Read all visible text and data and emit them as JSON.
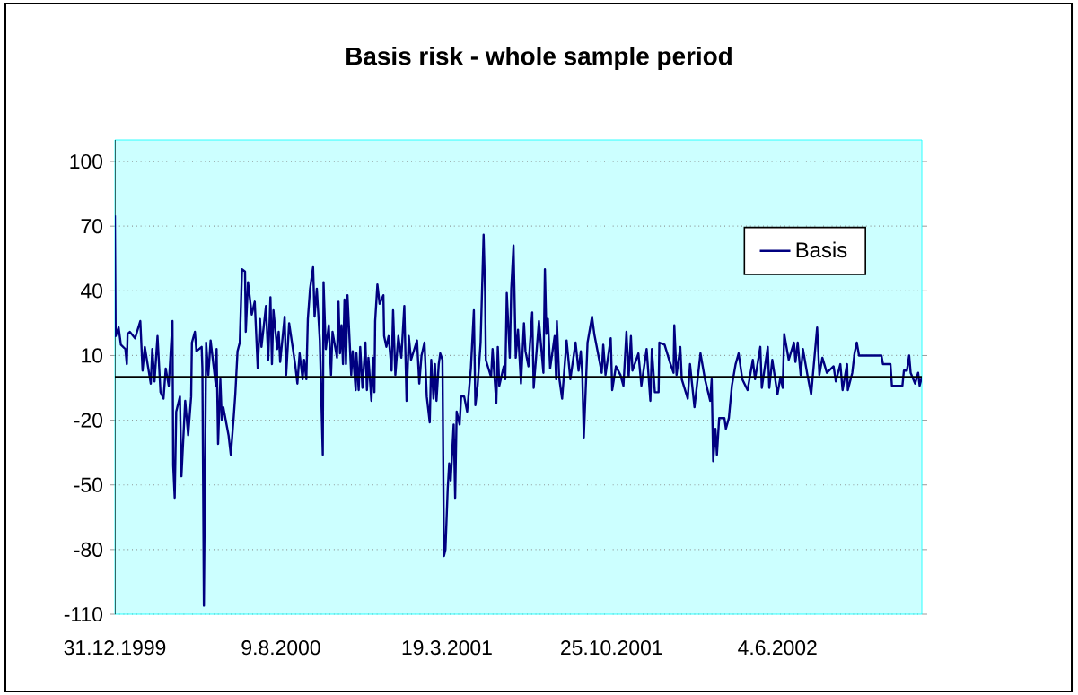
{
  "chart_data": {
    "type": "line",
    "title": "Basis risk - whole sample period",
    "x": [
      "1999-12-31",
      "2000-01-01",
      "2000-01-05",
      "2000-01-08",
      "2000-01-14",
      "2000-01-16",
      "2000-01-17",
      "2000-01-20",
      "2000-01-27",
      "2000-02-03",
      "2000-02-06",
      "2000-02-09",
      "2000-02-17",
      "2000-02-19",
      "2000-02-22",
      "2000-02-26",
      "2000-03-01",
      "2000-03-05",
      "2000-03-08",
      "2000-03-12",
      "2000-03-17",
      "2000-03-18",
      "2000-03-20",
      "2000-03-22",
      "2000-03-27",
      "2000-03-29",
      "2000-04-03",
      "2000-04-07",
      "2000-04-11",
      "2000-04-12",
      "2000-04-16",
      "2000-04-18",
      "2000-04-25",
      "2000-04-26",
      "2000-04-28",
      "2000-05-01",
      "2000-05-04",
      "2000-05-07",
      "2000-05-14",
      "2000-05-15",
      "2000-05-17",
      "2000-05-20",
      "2000-05-22",
      "2000-05-24",
      "2000-05-31",
      "2000-06-03",
      "2000-06-07",
      "2000-06-09",
      "2000-06-12",
      "2000-06-15",
      "2000-06-18",
      "2000-06-22",
      "2000-06-23",
      "2000-06-26",
      "2000-07-01",
      "2000-07-05",
      "2000-07-09",
      "2000-07-12",
      "2000-07-14",
      "2000-07-20",
      "2000-07-23",
      "2000-07-26",
      "2000-07-28",
      "2000-07-30",
      "2000-08-04",
      "2000-08-06",
      "2000-08-08",
      "2000-08-14",
      "2000-08-16",
      "2000-08-20",
      "2000-08-28",
      "2000-08-31",
      "2000-09-03",
      "2000-09-07",
      "2000-09-09",
      "2000-09-12",
      "2000-09-14",
      "2000-09-17",
      "2000-09-21",
      "2000-09-23",
      "2000-09-26",
      "2000-09-30",
      "2000-10-04",
      "2000-10-05",
      "2000-10-08",
      "2000-10-12",
      "2000-10-15",
      "2000-10-17",
      "2000-10-23",
      "2000-10-25",
      "2000-10-27",
      "2000-10-29",
      "2000-10-31",
      "2000-11-02",
      "2000-11-04",
      "2000-11-06",
      "2000-11-11",
      "2000-11-13",
      "2000-11-17",
      "2000-11-18",
      "2000-11-21",
      "2000-11-23",
      "2000-11-26",
      "2000-11-30",
      "2000-12-02",
      "2000-12-04",
      "2000-12-08",
      "2000-12-10",
      "2000-12-12",
      "2000-12-13",
      "2000-12-16",
      "2000-12-19",
      "2000-12-24",
      "2000-12-25",
      "2000-12-28",
      "2000-12-31",
      "2001-01-04",
      "2001-01-06",
      "2001-01-09",
      "2001-01-13",
      "2001-01-17",
      "2001-01-21",
      "2001-01-24",
      "2001-01-27",
      "2001-01-30",
      "2001-02-07",
      "2001-02-10",
      "2001-02-13",
      "2001-02-17",
      "2001-02-20",
      "2001-02-24",
      "2001-02-26",
      "2001-03-01",
      "2001-03-03",
      "2001-03-05",
      "2001-03-08",
      "2001-03-10",
      "2001-03-13",
      "2001-03-15",
      "2001-03-17",
      "2001-03-20",
      "2001-03-22",
      "2001-03-24",
      "2001-03-28",
      "2001-03-30",
      "2001-04-01",
      "2001-04-05",
      "2001-04-07",
      "2001-04-11",
      "2001-04-15",
      "2001-04-20",
      "2001-04-24",
      "2001-04-26",
      "2001-04-29",
      "2001-05-03",
      "2001-05-07",
      "2001-05-09",
      "2001-05-10",
      "2001-05-17",
      "2001-05-19",
      "2001-05-24",
      "2001-05-26",
      "2001-05-28",
      "2001-06-03",
      "2001-06-05",
      "2001-06-07",
      "2001-06-11",
      "2001-06-13",
      "2001-06-16",
      "2001-06-19",
      "2001-06-22",
      "2001-06-26",
      "2001-06-30",
      "2001-07-02",
      "2001-07-06",
      "2001-07-11",
      "2001-07-13",
      "2001-07-20",
      "2001-07-26",
      "2001-07-28",
      "2001-07-30",
      "2001-08-01",
      "2001-08-04",
      "2001-08-10",
      "2001-08-12",
      "2001-08-13",
      "2001-08-16",
      "2001-08-20",
      "2001-08-26",
      "2001-08-31",
      "2001-09-07",
      "2001-09-11",
      "2001-09-14",
      "2001-09-16",
      "2001-09-18",
      "2001-09-23",
      "2001-09-29",
      "2001-10-02",
      "2001-10-12",
      "2001-10-14",
      "2001-10-17",
      "2001-10-24",
      "2001-10-26",
      "2001-10-31",
      "2001-11-06",
      "2001-11-10",
      "2001-11-14",
      "2001-11-17",
      "2001-11-20",
      "2001-11-22",
      "2001-11-30",
      "2001-12-04",
      "2001-12-11",
      "2001-12-16",
      "2001-12-18",
      "2001-12-22",
      "2001-12-27",
      "2001-12-28",
      "2002-01-04",
      "2002-01-11",
      "2002-01-16",
      "2002-01-17",
      "2002-01-20",
      "2002-01-25",
      "2002-01-27",
      "2002-02-04",
      "2002-02-07",
      "2002-02-13",
      "2002-02-21",
      "2002-02-27",
      "2002-03-06",
      "2002-03-08",
      "2002-03-10",
      "2002-03-13",
      "2002-03-15",
      "2002-03-18",
      "2002-03-25",
      "2002-03-27",
      "2002-03-31",
      "2002-04-04",
      "2002-04-09",
      "2002-04-13",
      "2002-04-18",
      "2002-04-25",
      "2002-05-02",
      "2002-05-05",
      "2002-05-12",
      "2002-05-14",
      "2002-05-22",
      "2002-05-24",
      "2002-05-28",
      "2002-06-04",
      "2002-06-08",
      "2002-06-11",
      "2002-06-13",
      "2002-06-19",
      "2002-06-26",
      "2002-06-28",
      "2002-07-01",
      "2002-07-05",
      "2002-07-08",
      "2002-07-14",
      "2002-07-19",
      "2002-07-27",
      "2002-07-30",
      "2002-08-03",
      "2002-08-09",
      "2002-08-18",
      "2002-08-21",
      "2002-08-27",
      "2002-08-30",
      "2002-09-05",
      "2002-09-06",
      "2002-09-12",
      "2002-09-15",
      "2002-09-18",
      "2002-09-21",
      "2002-10-21",
      "2002-10-23",
      "2002-11-02",
      "2002-11-04",
      "2002-11-18",
      "2002-11-20",
      "2002-11-24",
      "2002-11-27",
      "2002-11-29",
      "2002-12-05",
      "2002-12-09",
      "2002-12-11",
      "2002-12-14"
    ],
    "series": [
      {
        "name": "Basis",
        "color": "#000080",
        "values": [
          75,
          19,
          23,
          15,
          13,
          6,
          20,
          21,
          18,
          26,
          3,
          14,
          -3,
          13,
          -2,
          19,
          -7,
          -10,
          4,
          -4,
          26,
          -41,
          -56,
          -16,
          -9,
          -46,
          -11,
          -27,
          -9,
          16,
          21,
          12,
          14,
          4,
          -106,
          16,
          1,
          17,
          -4,
          13,
          -31,
          -1,
          -20,
          -14,
          -27,
          -36,
          -18,
          -8,
          12,
          16,
          50,
          49,
          21,
          44,
          29,
          35,
          4,
          27,
          14,
          33,
          8,
          37,
          6,
          31,
          13,
          21,
          7,
          28,
          1,
          25,
          6,
          -3,
          11,
          -1,
          8,
          -1,
          27,
          41,
          51,
          28,
          41,
          17,
          -36,
          44,
          13,
          24,
          1,
          21,
          9,
          35,
          11,
          24,
          6,
          36,
          6,
          38,
          1,
          12,
          -6,
          11,
          -6,
          14,
          -5,
          16,
          -6,
          9,
          -11,
          9,
          -7,
          26,
          43,
          34,
          38,
          19,
          14,
          19,
          3,
          31,
          1,
          19,
          9,
          33,
          -11,
          19,
          8,
          17,
          -3,
          10,
          16,
          -9,
          -21,
          8,
          -10,
          6,
          -11,
          6,
          11,
          8,
          -83,
          -80,
          -52,
          -40,
          -48,
          -22,
          -56,
          -16,
          -22,
          -9,
          -9,
          -16,
          4,
          31,
          -13,
          -4,
          16,
          66,
          40,
          8,
          0,
          13,
          -12,
          14,
          -4,
          5,
          -1,
          39,
          9,
          41,
          61,
          9,
          22,
          -3,
          25,
          12,
          5,
          30,
          -5,
          26,
          2,
          50,
          20,
          27,
          4,
          19,
          -1,
          26,
          0,
          -10,
          17,
          -1,
          16,
          3,
          12,
          1,
          -28,
          16,
          28,
          20,
          2,
          15,
          1,
          18,
          -6,
          5,
          1,
          -4,
          21,
          0,
          19,
          3,
          11,
          -4,
          13,
          -11,
          13,
          -7,
          -7,
          16,
          15,
          7,
          2,
          24,
          1,
          14,
          -1,
          -10,
          6,
          -14,
          11,
          -1,
          -11,
          -1,
          -39,
          -24,
          -36,
          -19,
          -19,
          -24,
          -19,
          -4,
          6,
          11,
          -1,
          -6,
          8,
          -1,
          14,
          -5,
          14,
          -5,
          8,
          -8,
          0,
          -5,
          20,
          8,
          16,
          7,
          16,
          1,
          13,
          1,
          -8,
          23,
          1,
          9,
          2,
          5,
          -2,
          6,
          -6,
          6,
          -6,
          2,
          11,
          16,
          10,
          10,
          6,
          6,
          -4,
          -4,
          3,
          3,
          10,
          2,
          -3,
          2,
          -4,
          0
        ]
      }
    ],
    "xlim": [
      "1999-12-31",
      "2002-12-14"
    ],
    "xticks": [
      {
        "value": "1999-12-31",
        "label": "31.12.1999"
      },
      {
        "value": "2000-08-09",
        "label": "9.8.2000"
      },
      {
        "value": "2001-03-19",
        "label": "19.3.2001"
      },
      {
        "value": "2001-10-25",
        "label": "25.10.2001"
      },
      {
        "value": "2002-06-04",
        "label": "4.6.2002"
      }
    ],
    "ylim": [
      -110,
      110
    ],
    "yticks": [
      -110,
      -80,
      -50,
      -20,
      10,
      40,
      70,
      100
    ],
    "grid": "y",
    "legend": "top right"
  }
}
